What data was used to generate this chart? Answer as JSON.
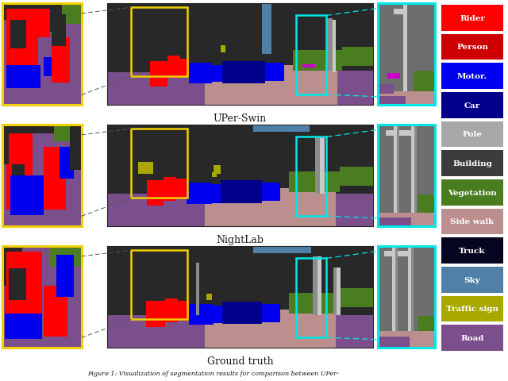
{
  "legend_items": [
    {
      "label": "Rider",
      "color": "#FF0000"
    },
    {
      "label": "Person",
      "color": "#CC0000"
    },
    {
      "label": "Motor.",
      "color": "#0000EE"
    },
    {
      "label": "Car",
      "color": "#00008B"
    },
    {
      "label": "Pole",
      "color": "#A8A8A8"
    },
    {
      "label": "Building",
      "color": "#3C3C3C"
    },
    {
      "label": "Vegetation",
      "color": "#4A7C20"
    },
    {
      "label": "Side walk",
      "color": "#BC8F8F"
    },
    {
      "label": "Truck",
      "color": "#060620"
    },
    {
      "label": "Sky",
      "color": "#5080A8"
    },
    {
      "label": "Traffic sign",
      "color": "#A8A800"
    },
    {
      "label": "Road",
      "color": "#7B4F8B"
    }
  ],
  "row_labels": [
    "UPer-Swin",
    "NightLab",
    "Ground truth"
  ],
  "caption": "Figure 1: Visualization of segmentation results for comparison between UPer-",
  "bg_color": "#FFFFFF",
  "legend_text_color": "#FFFFFF",
  "label_color": "#1A1A1A",
  "border_yellow": "#F0D000",
  "border_cyan": "#00E8E8"
}
